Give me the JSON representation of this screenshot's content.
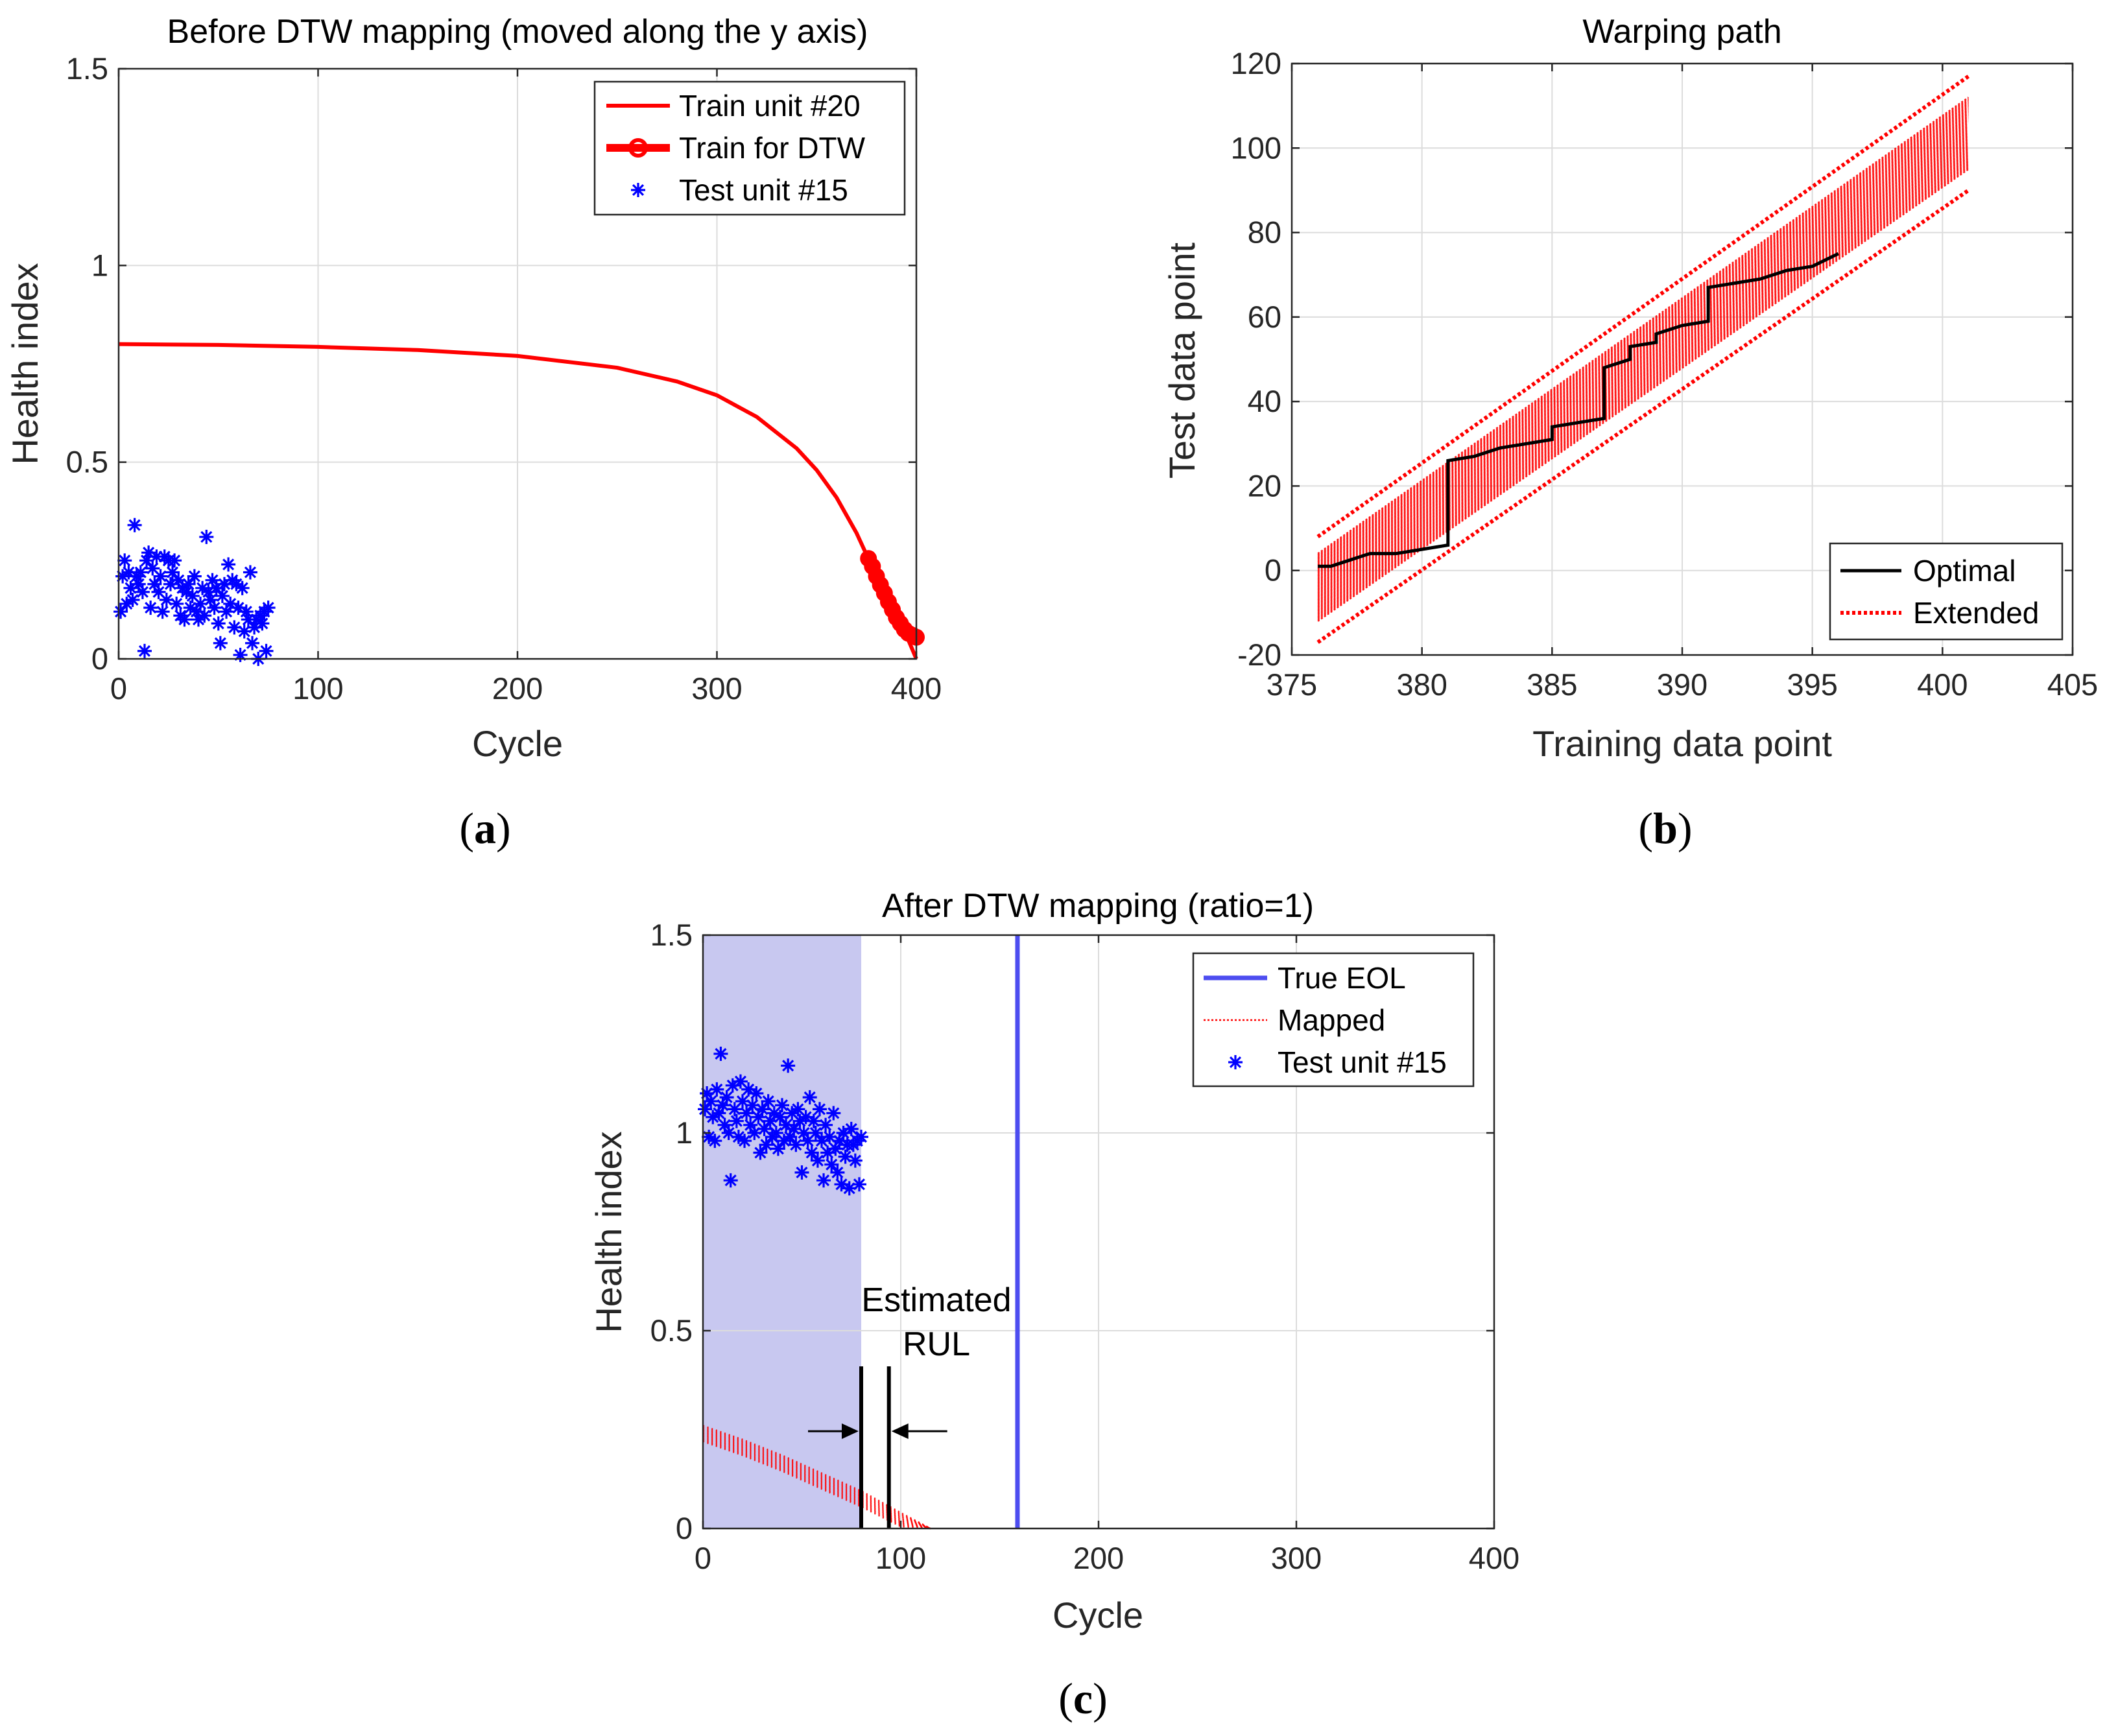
{
  "colors": {
    "train_red": "#ff0000",
    "test_blue": "#0000ff",
    "optimal_black": "#000000",
    "eol_blue": "#4d4df0",
    "shade": "#c8c8f0"
  },
  "panel_labels": [
    {
      "open": "(",
      "letter": "a",
      "close": ")"
    },
    {
      "open": "(",
      "letter": "b",
      "close": ")"
    },
    {
      "open": "(",
      "letter": "c",
      "close": ")"
    }
  ],
  "chart_data": [
    {
      "type": "line",
      "title": "Before DTW mapping (moved along the y axis)",
      "xlabel": "Cycle",
      "ylabel": "Health index",
      "xlim": [
        0,
        400
      ],
      "ylim": [
        0,
        1.5
      ],
      "xticks": [
        0,
        100,
        200,
        300,
        400
      ],
      "xtick_labels": [
        "0",
        "100",
        "200",
        "300",
        "400"
      ],
      "yticks": [
        0,
        0.5,
        1,
        1.5
      ],
      "ytick_labels": [
        "0",
        "0.5",
        "1",
        "1.5"
      ],
      "grid": true,
      "legend_position": "top-right",
      "series": [
        {
          "name": "Train unit #20",
          "style": "line",
          "x": [
            0,
            50,
            100,
            150,
            200,
            250,
            280,
            300,
            320,
            340,
            350,
            360,
            370,
            375,
            380,
            385,
            390,
            395,
            400
          ],
          "y": [
            0.8,
            0.798,
            0.793,
            0.785,
            0.77,
            0.74,
            0.705,
            0.67,
            0.615,
            0.535,
            0.48,
            0.41,
            0.32,
            0.265,
            0.21,
            0.155,
            0.105,
            0.06,
            0.0
          ]
        },
        {
          "name": "Train for DTW",
          "style": "thick-line-circles",
          "x": [
            376,
            378,
            380,
            382,
            384,
            386,
            388,
            390,
            392,
            394,
            396,
            398,
            400
          ],
          "y": [
            0.255,
            0.235,
            0.21,
            0.188,
            0.167,
            0.145,
            0.125,
            0.105,
            0.09,
            0.075,
            0.065,
            0.06,
            0.055
          ]
        },
        {
          "name": "Test unit #15",
          "style": "markers-star",
          "x": [
            1,
            2,
            3,
            4,
            5,
            6,
            7,
            8,
            9,
            10,
            11,
            12,
            13,
            14,
            15,
            16,
            17,
            18,
            19,
            20,
            21,
            22,
            23,
            24,
            25,
            26,
            27,
            28,
            29,
            30,
            31,
            32,
            33,
            34,
            35,
            36,
            37,
            38,
            39,
            40,
            41,
            42,
            43,
            44,
            45,
            46,
            47,
            48,
            49,
            50,
            51,
            52,
            53,
            54,
            55,
            56,
            57,
            58,
            59,
            60,
            61,
            62,
            63,
            64,
            65,
            66,
            67,
            68,
            69,
            70,
            71,
            72,
            73,
            74,
            75
          ],
          "y": [
            0.12,
            0.21,
            0.25,
            0.14,
            0.22,
            0.18,
            0.15,
            0.34,
            0.21,
            0.19,
            0.22,
            0.17,
            0.02,
            0.25,
            0.27,
            0.13,
            0.23,
            0.19,
            0.26,
            0.17,
            0.21,
            0.12,
            0.26,
            0.15,
            0.25,
            0.19,
            0.22,
            0.25,
            0.14,
            0.2,
            0.11,
            0.18,
            0.1,
            0.17,
            0.19,
            0.13,
            0.16,
            0.21,
            0.12,
            0.1,
            0.14,
            0.18,
            0.11,
            0.31,
            0.17,
            0.15,
            0.2,
            0.13,
            0.18,
            0.09,
            0.04,
            0.16,
            0.19,
            0.12,
            0.24,
            0.14,
            0.2,
            0.08,
            0.19,
            0.13,
            0.01,
            0.18,
            0.07,
            0.12,
            0.1,
            0.22,
            0.04,
            0.08,
            0.1,
            0.0,
            0.11,
            0.09,
            0.12,
            0.02,
            0.13
          ]
        }
      ]
    },
    {
      "type": "line",
      "title": "Warping path",
      "xlabel": "Training data point",
      "ylabel": "Test data point",
      "xlim": [
        375,
        405
      ],
      "ylim": [
        -20,
        120
      ],
      "xticks": [
        375,
        380,
        385,
        390,
        395,
        400,
        405
      ],
      "xtick_labels": [
        "375",
        "380",
        "385",
        "390",
        "395",
        "400",
        "405"
      ],
      "yticks": [
        -20,
        0,
        20,
        40,
        60,
        80,
        100,
        120
      ],
      "ytick_labels": [
        "-20",
        "0",
        "20",
        "40",
        "60",
        "80",
        "100",
        "120"
      ],
      "grid": true,
      "legend_position": "bottom-right",
      "series": [
        {
          "name": "Optimal",
          "style": "step-line",
          "x": [
            376,
            376.5,
            377,
            377.5,
            378,
            379,
            380,
            381,
            381,
            382,
            383,
            384,
            385,
            385,
            386,
            387,
            387,
            388,
            388,
            389,
            389,
            390,
            391,
            391,
            392,
            393,
            394,
            395,
            396
          ],
          "y": [
            1,
            1,
            2,
            3,
            4,
            4,
            5,
            6,
            26,
            27,
            29,
            30,
            31,
            34,
            35,
            36,
            48,
            50,
            53,
            54,
            56,
            58,
            59,
            67,
            68,
            69,
            71,
            72,
            75
          ]
        },
        {
          "name": "Extended",
          "style": "dotted-band",
          "x": [
            376,
            401
          ],
          "band_lower": [
            -17,
            90
          ],
          "band_upper": [
            8,
            117
          ],
          "dense_lower": [
            -12,
            95
          ],
          "dense_upper": [
            4,
            112
          ]
        }
      ]
    },
    {
      "type": "line",
      "title": "After DTW mapping (ratio=1)",
      "xlabel": "Cycle",
      "ylabel": "Health index",
      "xlim": [
        0,
        400
      ],
      "ylim": [
        0,
        1.5
      ],
      "xticks": [
        0,
        100,
        200,
        300,
        400
      ],
      "xtick_labels": [
        "0",
        "100",
        "200",
        "300",
        "400"
      ],
      "yticks": [
        0,
        0.5,
        1,
        1.5
      ],
      "ytick_labels": [
        "0",
        "0.5",
        "1",
        "1.5"
      ],
      "grid": true,
      "legend_position": "top-right",
      "shaded_region_x": [
        0,
        80
      ],
      "eol_line_x": 159,
      "rul_markers_x": [
        80,
        94
      ],
      "annotation": {
        "line1": "Estimated",
        "line2": "RUL"
      },
      "series": [
        {
          "name": "True EOL",
          "style": "vertical-line",
          "x": [
            159,
            159
          ],
          "y": [
            0,
            1.5
          ]
        },
        {
          "name": "Mapped",
          "style": "dotted-band",
          "x": [
            0,
            20,
            40,
            60,
            80,
            100,
            115
          ],
          "upper": [
            0.26,
            0.225,
            0.185,
            0.14,
            0.095,
            0.04,
            0.0
          ],
          "lower": [
            0.22,
            0.185,
            0.145,
            0.1,
            0.055,
            0.005,
            0.0
          ]
        },
        {
          "name": "Test unit #15",
          "style": "markers-star",
          "x": [
            1,
            2,
            3,
            4,
            5,
            6,
            7,
            8,
            9,
            10,
            11,
            12,
            13,
            14,
            15,
            16,
            17,
            18,
            19,
            20,
            21,
            22,
            23,
            24,
            25,
            26,
            27,
            28,
            29,
            30,
            31,
            32,
            33,
            34,
            35,
            36,
            37,
            38,
            39,
            40,
            41,
            42,
            43,
            44,
            45,
            46,
            47,
            48,
            49,
            50,
            51,
            52,
            53,
            54,
            55,
            56,
            57,
            58,
            59,
            60,
            61,
            62,
            63,
            64,
            65,
            66,
            67,
            68,
            69,
            70,
            71,
            72,
            73,
            74,
            75,
            76,
            77,
            78,
            79,
            80
          ],
          "y": [
            1.06,
            1.1,
            0.99,
            1.08,
            1.04,
            0.98,
            1.11,
            1.05,
            1.2,
            1.07,
            1.02,
            1.09,
            1.0,
            0.88,
            1.12,
            1.06,
            1.03,
            0.99,
            1.13,
            1.08,
            0.98,
            1.05,
            1.11,
            1.02,
            1.07,
            1.0,
            1.1,
            1.04,
            0.95,
            1.06,
            1.01,
            0.97,
            1.08,
            1.03,
            0.99,
            1.05,
            1.0,
            0.96,
            1.04,
            1.07,
            0.98,
            1.02,
            1.17,
            0.99,
            1.05,
            1.01,
            0.97,
            1.06,
            1.03,
            0.9,
            1.0,
            1.04,
            0.98,
            1.09,
            0.95,
            1.03,
            1.0,
            0.93,
            1.06,
            0.98,
            0.88,
            1.02,
            0.95,
            0.99,
            0.92,
            1.05,
            0.96,
            0.9,
            0.98,
            0.87,
            1.0,
            0.94,
            0.97,
            0.86,
            1.01,
            0.97,
            0.93,
            0.98,
            0.87,
            0.99
          ]
        }
      ]
    }
  ]
}
